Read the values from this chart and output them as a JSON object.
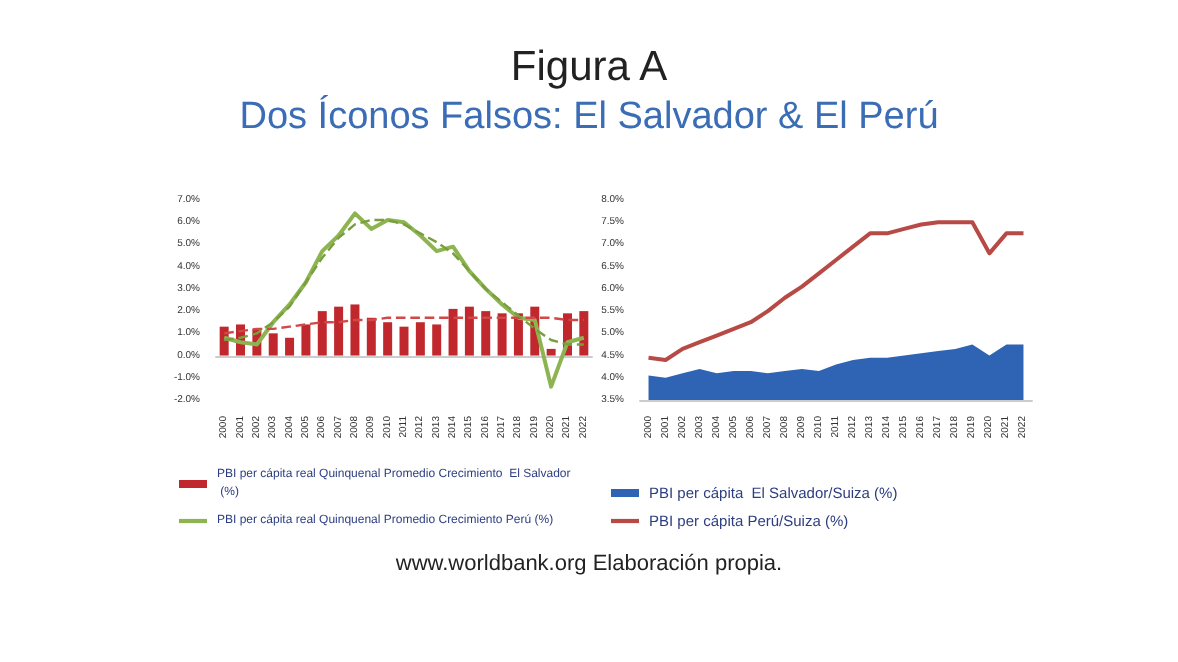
{
  "chart_data": [
    {
      "type": "bar",
      "title": "Figura A",
      "subtitle": "Dos Íconos Falsos: El Salvador & El Perú",
      "categories": [
        "2000",
        "2001",
        "2002",
        "2003",
        "2004",
        "2005",
        "2006",
        "2007",
        "2008",
        "2009",
        "2010",
        "2011",
        "2012",
        "2013",
        "2014",
        "2015",
        "2016",
        "2017",
        "2018",
        "2019",
        "2020",
        "2021",
        "2022"
      ],
      "series": [
        {
          "name": "PBI per cápita real Quinquenal Promedio Crecimiento  El Salvador (%)",
          "color": "#c0282d",
          "values": [
            1.3,
            1.4,
            1.2,
            1.0,
            0.8,
            1.4,
            2.0,
            2.2,
            2.3,
            1.7,
            1.5,
            1.3,
            1.5,
            1.4,
            2.1,
            2.2,
            2.0,
            1.9,
            1.9,
            2.2,
            0.3,
            1.9,
            2.0
          ]
        },
        {
          "name": "PBI per cápita real Quinquenal Promedio Crecimiento Perú (%)",
          "type": "line",
          "color": "#8db451",
          "marker": "none",
          "line_style": "solid",
          "values": [
            0.8,
            0.6,
            0.5,
            1.5,
            2.3,
            3.3,
            4.7,
            5.4,
            6.4,
            5.7,
            6.1,
            6.0,
            5.4,
            4.7,
            4.9,
            3.8,
            3.0,
            2.3,
            1.7,
            1.6,
            -1.4,
            0.6,
            0.8
          ]
        },
        {
          "type": "line",
          "color": "#d04848",
          "marker": "none",
          "line_style": "dashed",
          "values": [
            1.0,
            1.1,
            1.2,
            1.2,
            1.3,
            1.4,
            1.5,
            1.5,
            1.6,
            1.6,
            1.7,
            1.7,
            1.7,
            1.7,
            1.7,
            1.7,
            1.7,
            1.7,
            1.7,
            1.7,
            1.7,
            1.6,
            1.6
          ]
        },
        {
          "type": "line",
          "color": "#7a9e3d",
          "marker": "none",
          "line_style": "dashed",
          "values": [
            0.7,
            0.8,
            1.0,
            1.5,
            2.2,
            3.3,
            4.4,
            5.3,
            5.9,
            6.1,
            6.1,
            5.9,
            5.5,
            5.1,
            4.6,
            3.8,
            3.0,
            2.4,
            1.8,
            1.2,
            0.7,
            0.5,
            0.5
          ]
        }
      ],
      "ylim": [
        -2,
        7
      ],
      "yticks": [
        {
          "value": -2,
          "label": "-2.0%"
        },
        {
          "value": -1,
          "label": "-1.0%"
        },
        {
          "value": 0,
          "label": "0.0%"
        },
        {
          "value": 1,
          "label": "1.0%"
        },
        {
          "value": 2,
          "label": "2.0%"
        },
        {
          "value": 3,
          "label": "3.0%"
        },
        {
          "value": 4,
          "label": "4.0%"
        },
        {
          "value": 5,
          "label": "5.0%"
        },
        {
          "value": 6,
          "label": "6.0%"
        },
        {
          "value": 7,
          "label": "7.0%"
        }
      ],
      "legend": "bottom"
    },
    {
      "type": "area",
      "categories": [
        "2000",
        "2001",
        "2002",
        "2003",
        "2004",
        "2005",
        "2006",
        "2007",
        "2008",
        "2009",
        "2010",
        "2011",
        "2012",
        "2013",
        "2014",
        "2015",
        "2016",
        "2017",
        "2018",
        "2019",
        "2020",
        "2021",
        "2022"
      ],
      "series": [
        {
          "name": "PBI per cápita  El Salvador/Suiza (%)",
          "color": "#2e64b3",
          "values": [
            4.05,
            4.0,
            4.1,
            4.2,
            4.1,
            4.15,
            4.15,
            4.1,
            4.15,
            4.2,
            4.15,
            4.3,
            4.4,
            4.45,
            4.45,
            4.5,
            4.55,
            4.6,
            4.65,
            4.75,
            4.5,
            4.75,
            4.75
          ]
        },
        {
          "name": "PBI per cápita Perú/Suiza (%)",
          "type": "line",
          "color": "#b84a45",
          "marker": "none",
          "values": [
            4.45,
            4.4,
            4.65,
            4.8,
            4.95,
            5.1,
            5.25,
            5.5,
            5.8,
            6.05,
            6.35,
            6.65,
            6.95,
            7.25,
            7.25,
            7.35,
            7.45,
            7.5,
            7.5,
            7.5,
            6.8,
            7.25,
            7.25
          ]
        }
      ],
      "ylim": [
        3.5,
        8
      ],
      "yticks": [
        {
          "value": 3.5,
          "label": "3.5%"
        },
        {
          "value": 4,
          "label": "4.0%"
        },
        {
          "value": 4.5,
          "label": "4.5%"
        },
        {
          "value": 5,
          "label": "5.0%"
        },
        {
          "value": 5.5,
          "label": "5.5%"
        },
        {
          "value": 6,
          "label": "6.0%"
        },
        {
          "value": 6.5,
          "label": "6.5%"
        },
        {
          "value": 7,
          "label": "7.0%"
        },
        {
          "value": 7.5,
          "label": "7.5%"
        },
        {
          "value": 8,
          "label": "8.0%"
        }
      ],
      "legend": "bottom",
      "annotations": [
        "www.worldbank.org Elaboración propia."
      ]
    }
  ]
}
